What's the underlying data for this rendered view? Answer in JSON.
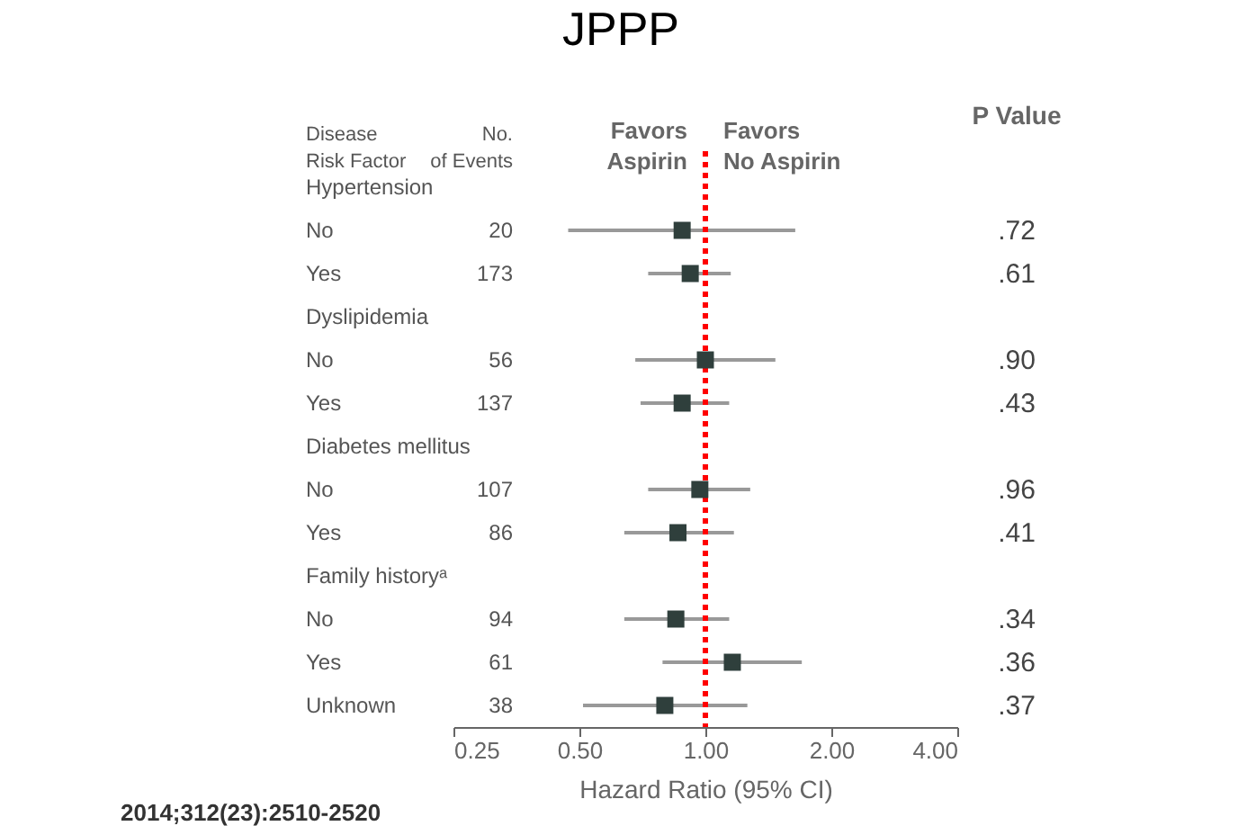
{
  "chart_data": {
    "type": "scatter",
    "title": "JPPP",
    "xlabel": "Hazard Ratio (95% CI)",
    "ylabel": "Disease Risk Factor",
    "orientation": "horizontal",
    "categories": [
      "Hypertension",
      "No",
      "Yes",
      "Dyslipidemia",
      "No",
      "Yes",
      "Diabetes mellitus",
      "No",
      "Yes",
      "Family historyᵃ",
      "No",
      "Yes",
      "Unknown"
    ],
    "series": [
      {
        "color": "#2f3f3c",
        "values": [
          null,
          0.88,
          0.92,
          null,
          1.0,
          0.88,
          null,
          0.97,
          0.86,
          null,
          0.85,
          1.16,
          0.8
        ],
        "errors": [
          null,
          [
            0.47,
            1.64
          ],
          [
            0.73,
            1.15
          ],
          null,
          [
            0.68,
            1.47
          ],
          [
            0.7,
            1.14
          ],
          null,
          [
            0.73,
            1.28
          ],
          [
            0.64,
            1.17
          ],
          null,
          [
            0.64,
            1.14
          ],
          [
            0.79,
            1.7
          ],
          [
            0.51,
            1.26
          ]
        ]
      }
    ],
    "annotations": [
      "No. of Events",
      "Favors Aspirin",
      "Favors No Aspirin",
      "P Value",
      "2014;312(23):2510-2520",
      "20",
      "173",
      "56",
      "137",
      "107",
      "86",
      "94",
      "61",
      "38",
      ".72",
      ".61",
      ".90",
      ".43",
      ".96",
      ".41",
      ".34",
      ".36",
      ".37"
    ],
    "xlim": [
      0.25,
      4
    ],
    "log": "x",
    "marker": "square",
    "grid": false,
    "xticks": [
      {
        "value": 0.25,
        "label": "0.25"
      },
      {
        "value": 0.5,
        "label": "0.50"
      },
      {
        "value": 1,
        "label": "1.00"
      },
      {
        "value": 2,
        "label": "2.00"
      },
      {
        "value": 4,
        "label": "4.00"
      }
    ],
    "ref_lines": [
      {
        "axis": "x",
        "value": 1,
        "color": "#ff0000",
        "line_style": "dotted"
      }
    ]
  }
}
